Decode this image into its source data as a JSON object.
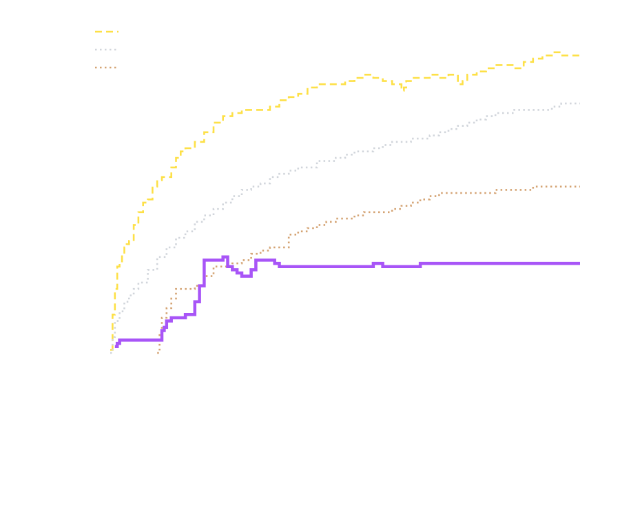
{
  "chart_data": {
    "type": "line",
    "title": "",
    "xlabel": "",
    "ylabel": "",
    "xlim": [
      0,
      100
    ],
    "ylim": [
      0,
      100
    ],
    "grid": false,
    "legend_position": "top-left",
    "series": [
      {
        "color": "#fde047",
        "style": "dashed",
        "x": [
          0,
          0.5,
          1,
          1.5,
          2,
          2.5,
          3,
          3.5,
          4,
          5,
          6,
          7,
          8,
          9,
          10,
          11,
          12,
          13,
          14,
          15,
          16,
          17,
          18,
          20,
          22,
          24,
          26,
          28,
          30,
          32,
          34,
          36,
          38,
          40,
          42,
          44,
          46,
          48,
          50,
          52,
          54,
          56,
          58,
          60,
          62,
          62.5,
          63,
          64,
          66,
          68,
          70,
          72,
          74,
          75,
          76,
          78,
          80,
          82,
          84,
          86,
          88,
          90,
          92,
          94,
          96,
          98,
          100
        ],
        "y": [
          1,
          12,
          20,
          27,
          28,
          31,
          33,
          34,
          35,
          40,
          44,
          47,
          48,
          52,
          54,
          55,
          55,
          58,
          61,
          63,
          64,
          64,
          66,
          69,
          72,
          74,
          75,
          76,
          76,
          76,
          77,
          79,
          80,
          81,
          83,
          84,
          84,
          84,
          85,
          86,
          87,
          86,
          85,
          84,
          82,
          83,
          85,
          86,
          86,
          87,
          86,
          87,
          84,
          85,
          87,
          88,
          89,
          90,
          90,
          89,
          91,
          92,
          93,
          94,
          93,
          93,
          92
        ]
      },
      {
        "color": "#d1d5db",
        "style": "dotted",
        "x": [
          0,
          0.5,
          1,
          2,
          3,
          4,
          5,
          6,
          8,
          10,
          12,
          14,
          16,
          18,
          20,
          22,
          24,
          26,
          28,
          30,
          32,
          34,
          36,
          38,
          40,
          42,
          44,
          46,
          48,
          50,
          52,
          54,
          56,
          58,
          60,
          62,
          64,
          66,
          68,
          70,
          72,
          74,
          76,
          78,
          80,
          82,
          84,
          86,
          88,
          90,
          92,
          94,
          96,
          98,
          100
        ],
        "y": [
          0,
          5,
          10,
          13,
          16,
          18,
          20,
          22,
          26,
          30,
          33,
          36,
          38,
          41,
          43,
          45,
          47,
          49,
          51,
          52,
          53,
          55,
          56,
          57,
          58,
          58,
          60,
          60,
          61,
          62,
          63,
          63,
          64,
          65,
          66,
          66,
          67,
          67,
          68,
          69,
          70,
          71,
          72,
          73,
          74,
          75,
          75,
          76,
          76,
          76,
          76,
          77,
          78,
          78,
          78
        ]
      },
      {
        "color": "#d4a373",
        "style": "dotted",
        "x": [
          10,
          10.5,
          11,
          12,
          13,
          14,
          16,
          18,
          20,
          22,
          24,
          26,
          28,
          30,
          32,
          34,
          36,
          38,
          40,
          42,
          44,
          46,
          48,
          50,
          52,
          54,
          56,
          58,
          60,
          62,
          64,
          66,
          68,
          70,
          72,
          74,
          76,
          78,
          80,
          82,
          84,
          86,
          88,
          90,
          92,
          94,
          96,
          98,
          100
        ],
        "y": [
          0,
          6,
          11,
          14,
          17,
          20,
          20,
          21,
          24,
          27,
          27,
          28,
          29,
          31,
          32,
          33,
          33,
          37,
          38,
          39,
          40,
          41,
          42,
          42,
          43,
          44,
          44,
          44,
          45,
          46,
          47,
          48,
          49,
          50,
          50,
          50,
          50,
          50,
          50,
          51,
          51,
          51,
          51,
          52,
          52,
          52,
          52,
          52,
          52
        ]
      },
      {
        "color": "#a855f7",
        "style": "solid",
        "x": [
          1,
          1.5,
          2,
          3,
          4,
          6,
          8,
          10,
          11,
          11.5,
          12,
          13,
          14,
          16,
          18,
          19,
          20,
          21,
          22,
          23,
          24,
          25,
          26,
          27,
          28,
          29,
          30,
          31,
          32,
          33,
          34,
          35,
          36,
          38,
          40,
          42,
          44,
          46,
          48,
          50,
          52,
          54,
          56,
          58,
          60,
          62,
          64,
          66,
          68,
          70,
          72,
          74,
          76,
          78,
          80,
          82,
          84,
          86,
          88,
          90,
          92,
          94,
          96,
          98,
          100
        ],
        "y": [
          2,
          3,
          4,
          4,
          4,
          4,
          4,
          4,
          7,
          8,
          10,
          11,
          11,
          12,
          16,
          21,
          29,
          29,
          29,
          29,
          30,
          27,
          26,
          25,
          24,
          24,
          26,
          29,
          29,
          29,
          29,
          28,
          27,
          27,
          27,
          27,
          27,
          27,
          27,
          27,
          27,
          27,
          28,
          27,
          27,
          27,
          27,
          28,
          28,
          28,
          28,
          28,
          28,
          28,
          28,
          28,
          28,
          28,
          28,
          28,
          28,
          28,
          28,
          28,
          28
        ]
      }
    ]
  }
}
